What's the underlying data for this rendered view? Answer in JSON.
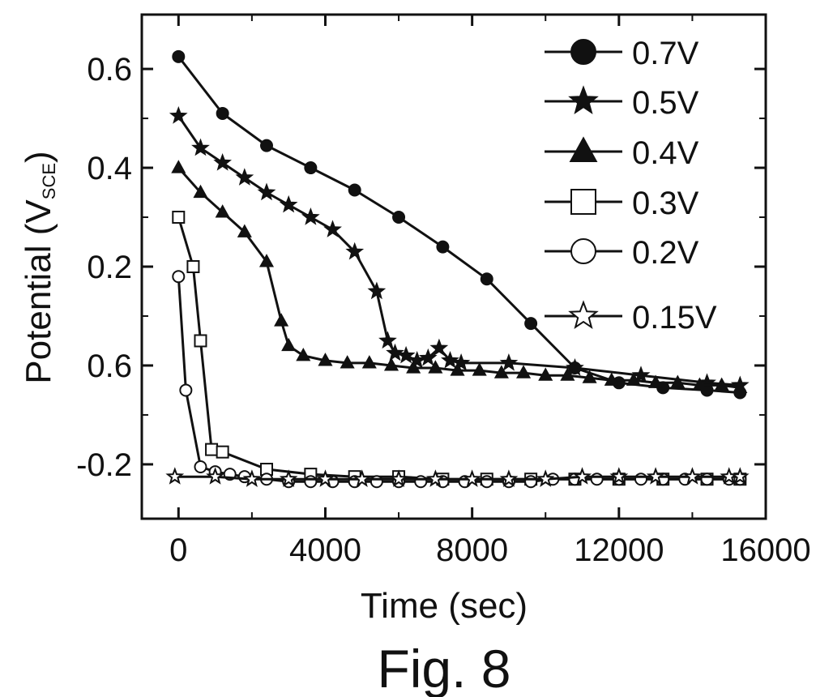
{
  "chart_data": {
    "type": "line",
    "xlabel": "Time (sec)",
    "ylabel_main": "Potential (V",
    "ylabel_sub": "SCE",
    "ylabel_close": ")",
    "caption": "Fig. 8",
    "xlim": [
      -1000,
      16000
    ],
    "ylim": [
      -0.31,
      0.71
    ],
    "x_ticks": [
      0,
      4000,
      8000,
      12000,
      16000
    ],
    "x_tick_labels": [
      "0",
      "4000",
      "8000",
      "12000",
      "16000"
    ],
    "y_ticks": [
      0.6,
      0.4,
      0.2,
      0.0,
      -0.2
    ],
    "y_tick_labels": [
      "0.6",
      "0.4",
      "0.2",
      "0.6",
      "-0.2"
    ],
    "grid": false,
    "legend_position": "top-right",
    "series": [
      {
        "name": "0.7V",
        "marker": "circle-filled",
        "points": [
          [
            0,
            0.625
          ],
          [
            1200,
            0.51
          ],
          [
            2400,
            0.445
          ],
          [
            3600,
            0.4
          ],
          [
            4800,
            0.355
          ],
          [
            6000,
            0.3
          ],
          [
            7200,
            0.24
          ],
          [
            8400,
            0.175
          ],
          [
            9600,
            0.085
          ],
          [
            10800,
            -0.005
          ],
          [
            12000,
            -0.035
          ],
          [
            13200,
            -0.045
          ],
          [
            14400,
            -0.05
          ],
          [
            15300,
            -0.055
          ]
        ]
      },
      {
        "name": "0.5V",
        "marker": "star-filled",
        "points": [
          [
            0,
            0.505
          ],
          [
            600,
            0.44
          ],
          [
            1200,
            0.41
          ],
          [
            1800,
            0.38
          ],
          [
            2400,
            0.35
          ],
          [
            3000,
            0.325
          ],
          [
            3600,
            0.3
          ],
          [
            4200,
            0.275
          ],
          [
            4800,
            0.23
          ],
          [
            5400,
            0.15
          ],
          [
            5700,
            0.05
          ],
          [
            5900,
            0.025
          ],
          [
            6200,
            0.02
          ],
          [
            6500,
            0.01
          ],
          [
            6800,
            0.015
          ],
          [
            7100,
            0.035
          ],
          [
            7400,
            0.01
          ],
          [
            7700,
            0.005
          ],
          [
            9000,
            0.005
          ],
          [
            10800,
            -0.005
          ],
          [
            12600,
            -0.02
          ],
          [
            14400,
            -0.035
          ],
          [
            15300,
            -0.04
          ]
        ]
      },
      {
        "name": "0.4V",
        "marker": "triangle-filled",
        "points": [
          [
            0,
            0.4
          ],
          [
            600,
            0.35
          ],
          [
            1200,
            0.31
          ],
          [
            1800,
            0.27
          ],
          [
            2400,
            0.21
          ],
          [
            2800,
            0.09
          ],
          [
            3000,
            0.04
          ],
          [
            3400,
            0.02
          ],
          [
            4000,
            0.01
          ],
          [
            4600,
            0.005
          ],
          [
            5200,
            0.005
          ],
          [
            5800,
            0.0
          ],
          [
            6400,
            -0.005
          ],
          [
            7000,
            -0.005
          ],
          [
            7600,
            -0.01
          ],
          [
            8200,
            -0.01
          ],
          [
            8800,
            -0.015
          ],
          [
            9400,
            -0.015
          ],
          [
            10000,
            -0.02
          ],
          [
            10600,
            -0.02
          ],
          [
            11200,
            -0.025
          ],
          [
            11800,
            -0.03
          ],
          [
            12400,
            -0.03
          ],
          [
            13000,
            -0.035
          ],
          [
            13600,
            -0.035
          ],
          [
            14200,
            -0.04
          ],
          [
            14800,
            -0.04
          ],
          [
            15300,
            -0.045
          ]
        ]
      },
      {
        "name": "0.3V",
        "marker": "square-open",
        "points": [
          [
            0,
            0.3
          ],
          [
            400,
            0.2
          ],
          [
            600,
            0.05
          ],
          [
            900,
            -0.17
          ],
          [
            1200,
            -0.175
          ],
          [
            2400,
            -0.21
          ],
          [
            3600,
            -0.22
          ],
          [
            4800,
            -0.225
          ],
          [
            6000,
            -0.225
          ],
          [
            7200,
            -0.23
          ],
          [
            8400,
            -0.23
          ],
          [
            9600,
            -0.23
          ],
          [
            10800,
            -0.23
          ],
          [
            12000,
            -0.23
          ],
          [
            13200,
            -0.23
          ],
          [
            14400,
            -0.23
          ],
          [
            15300,
            -0.23
          ]
        ]
      },
      {
        "name": "0.2V",
        "marker": "circle-open",
        "points": [
          [
            0,
            0.18
          ],
          [
            200,
            -0.05
          ],
          [
            600,
            -0.205
          ],
          [
            1000,
            -0.215
          ],
          [
            1400,
            -0.22
          ],
          [
            1800,
            -0.225
          ],
          [
            2400,
            -0.23
          ],
          [
            3000,
            -0.235
          ],
          [
            3600,
            -0.235
          ],
          [
            4200,
            -0.235
          ],
          [
            4800,
            -0.235
          ],
          [
            5400,
            -0.235
          ],
          [
            6000,
            -0.235
          ],
          [
            6600,
            -0.235
          ],
          [
            7200,
            -0.235
          ],
          [
            7800,
            -0.235
          ],
          [
            8400,
            -0.235
          ],
          [
            9000,
            -0.235
          ],
          [
            9600,
            -0.235
          ],
          [
            10200,
            -0.23
          ],
          [
            10800,
            -0.23
          ],
          [
            11400,
            -0.23
          ],
          [
            12000,
            -0.23
          ],
          [
            12600,
            -0.23
          ],
          [
            13200,
            -0.23
          ],
          [
            13800,
            -0.23
          ],
          [
            14400,
            -0.23
          ],
          [
            15000,
            -0.23
          ],
          [
            15300,
            -0.23
          ]
        ]
      },
      {
        "name": "0.15V",
        "marker": "star-open",
        "points": [
          [
            -100,
            -0.225
          ],
          [
            1000,
            -0.225
          ],
          [
            2000,
            -0.23
          ],
          [
            3000,
            -0.23
          ],
          [
            4000,
            -0.23
          ],
          [
            5000,
            -0.23
          ],
          [
            6000,
            -0.23
          ],
          [
            7000,
            -0.23
          ],
          [
            8000,
            -0.23
          ],
          [
            9000,
            -0.23
          ],
          [
            10000,
            -0.23
          ],
          [
            11000,
            -0.225
          ],
          [
            12000,
            -0.225
          ],
          [
            13000,
            -0.225
          ],
          [
            14000,
            -0.225
          ],
          [
            15000,
            -0.225
          ],
          [
            15300,
            -0.225
          ]
        ]
      }
    ]
  }
}
